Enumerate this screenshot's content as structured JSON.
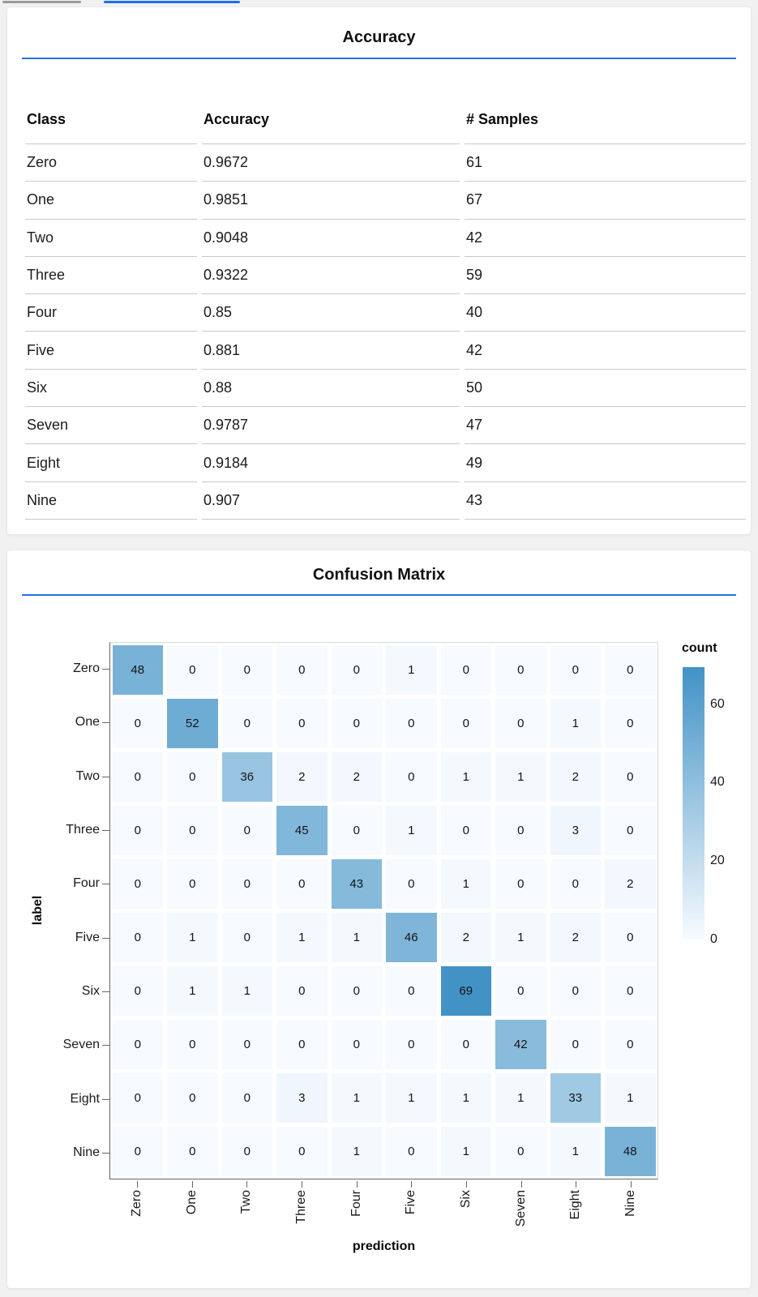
{
  "top_indicators": {
    "gray_bar_color": "#9a9a9a",
    "blue_bar_color": "#1a6ff0"
  },
  "accent_rule_color": "#2273e8",
  "accuracy_panel": {
    "title": "Accuracy",
    "columns": [
      "Class",
      "Accuracy",
      "# Samples"
    ],
    "rows": [
      [
        "Zero",
        "0.9672",
        "61"
      ],
      [
        "One",
        "0.9851",
        "67"
      ],
      [
        "Two",
        "0.9048",
        "42"
      ],
      [
        "Three",
        "0.9322",
        "59"
      ],
      [
        "Four",
        "0.85",
        "40"
      ],
      [
        "Five",
        "0.881",
        "42"
      ],
      [
        "Six",
        "0.88",
        "50"
      ],
      [
        "Seven",
        "0.9787",
        "47"
      ],
      [
        "Eight",
        "0.9184",
        "49"
      ],
      [
        "Nine",
        "0.907",
        "43"
      ]
    ]
  },
  "matrix_panel": {
    "title": "Confusion Matrix"
  },
  "chart_data": [
    {
      "type": "table",
      "title": "Accuracy",
      "columns": [
        "Class",
        "Accuracy",
        "# Samples"
      ],
      "rows": [
        [
          "Zero",
          0.9672,
          61
        ],
        [
          "One",
          0.9851,
          67
        ],
        [
          "Two",
          0.9048,
          42
        ],
        [
          "Three",
          0.9322,
          59
        ],
        [
          "Four",
          0.85,
          40
        ],
        [
          "Five",
          0.881,
          42
        ],
        [
          "Six",
          0.88,
          50
        ],
        [
          "Seven",
          0.9787,
          47
        ],
        [
          "Eight",
          0.9184,
          49
        ],
        [
          "Nine",
          0.907,
          43
        ]
      ]
    },
    {
      "type": "heatmap",
      "title": "Confusion Matrix",
      "xlabel": "prediction",
      "ylabel": "label",
      "categories": [
        "Zero",
        "One",
        "Two",
        "Three",
        "Four",
        "Five",
        "Six",
        "Seven",
        "Eight",
        "Nine"
      ],
      "matrix": [
        [
          48,
          0,
          0,
          0,
          0,
          1,
          0,
          0,
          0,
          0
        ],
        [
          0,
          52,
          0,
          0,
          0,
          0,
          0,
          0,
          1,
          0
        ],
        [
          0,
          0,
          36,
          2,
          2,
          0,
          1,
          1,
          2,
          0
        ],
        [
          0,
          0,
          0,
          45,
          0,
          1,
          0,
          0,
          3,
          0
        ],
        [
          0,
          0,
          0,
          0,
          43,
          0,
          1,
          0,
          0,
          2
        ],
        [
          0,
          1,
          0,
          1,
          1,
          46,
          2,
          1,
          2,
          0
        ],
        [
          0,
          1,
          1,
          0,
          0,
          0,
          69,
          0,
          0,
          0
        ],
        [
          0,
          0,
          0,
          0,
          0,
          0,
          0,
          42,
          0,
          0
        ],
        [
          0,
          0,
          0,
          3,
          1,
          1,
          1,
          1,
          33,
          1
        ],
        [
          0,
          0,
          0,
          0,
          1,
          0,
          1,
          0,
          1,
          48
        ]
      ],
      "legend": {
        "title": "count",
        "ticks": [
          60,
          40,
          20,
          0
        ],
        "domain": [
          0,
          69
        ]
      },
      "color_low": "#f7fbff",
      "color_high": "#4292c6",
      "grid": false,
      "legend_position": "right"
    }
  ]
}
